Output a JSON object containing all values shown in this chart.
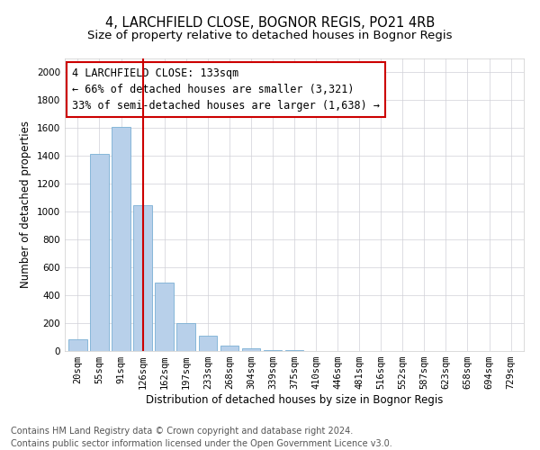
{
  "title": "4, LARCHFIELD CLOSE, BOGNOR REGIS, PO21 4RB",
  "subtitle": "Size of property relative to detached houses in Bognor Regis",
  "xlabel": "Distribution of detached houses by size in Bognor Regis",
  "ylabel": "Number of detached properties",
  "categories": [
    "20sqm",
    "55sqm",
    "91sqm",
    "126sqm",
    "162sqm",
    "197sqm",
    "233sqm",
    "268sqm",
    "304sqm",
    "339sqm",
    "375sqm",
    "410sqm",
    "446sqm",
    "481sqm",
    "516sqm",
    "552sqm",
    "587sqm",
    "623sqm",
    "658sqm",
    "694sqm",
    "729sqm"
  ],
  "values": [
    85,
    1415,
    1610,
    1050,
    490,
    200,
    110,
    40,
    20,
    8,
    4,
    0,
    0,
    0,
    0,
    0,
    0,
    0,
    0,
    0,
    0
  ],
  "bar_color": "#b8d0ea",
  "bar_edgecolor": "#7aafd4",
  "property_bin_index": 3,
  "vline_color": "#cc0000",
  "box_text_line1": "4 LARCHFIELD CLOSE: 133sqm",
  "box_text_line2": "← 66% of detached houses are smaller (3,321)",
  "box_text_line3": "33% of semi-detached houses are larger (1,638) →",
  "ylim": [
    0,
    2100
  ],
  "yticks": [
    0,
    200,
    400,
    600,
    800,
    1000,
    1200,
    1400,
    1600,
    1800,
    2000
  ],
  "footer_line1": "Contains HM Land Registry data © Crown copyright and database right 2024.",
  "footer_line2": "Contains public sector information licensed under the Open Government Licence v3.0.",
  "title_fontsize": 10.5,
  "subtitle_fontsize": 9.5,
  "xlabel_fontsize": 8.5,
  "ylabel_fontsize": 8.5,
  "tick_fontsize": 7.5,
  "footer_fontsize": 7.0,
  "annot_fontsize": 8.5
}
